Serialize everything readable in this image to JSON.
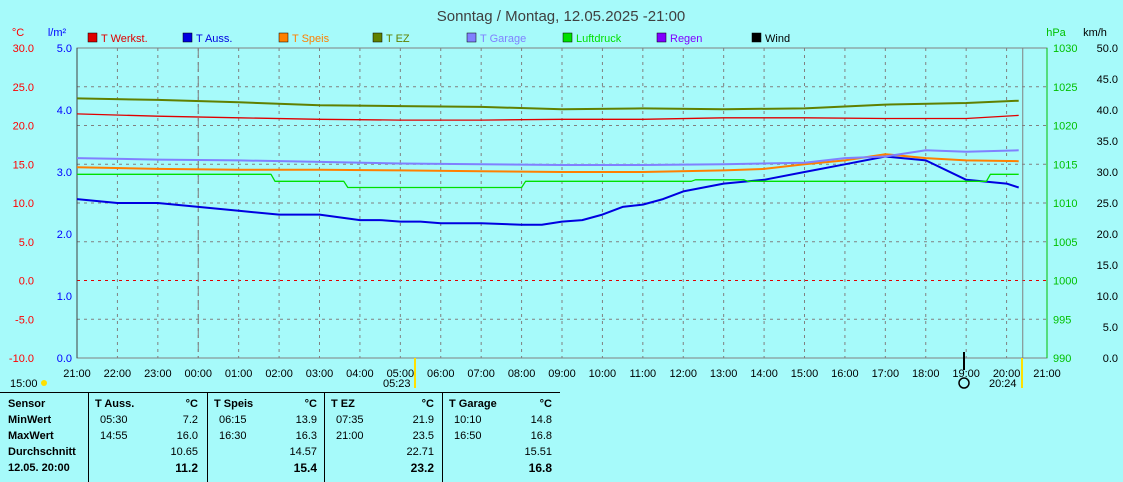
{
  "title": "Sonntag / Montag, 12.05.2025  -21:00",
  "chart_data": {
    "type": "line",
    "axes": {
      "left_temp": {
        "unit": "°C",
        "range": [
          -10,
          30
        ],
        "ticks": [
          "-10.0",
          "-5.0",
          "0.0",
          "5.0",
          "10.0",
          "15.0",
          "20.0",
          "25.0",
          "30.0"
        ],
        "color": "#ff0000"
      },
      "left_rain": {
        "unit": "l/m²",
        "range": [
          0,
          5
        ],
        "ticks": [
          "0.0",
          "1.0",
          "2.0",
          "3.0",
          "4.0",
          "5.0"
        ],
        "color": "#0000ff"
      },
      "right_pressure": {
        "unit": "hPa",
        "range": [
          990,
          1030
        ],
        "ticks": [
          "990",
          "995",
          "1000",
          "1005",
          "1010",
          "1015",
          "1020",
          "1025",
          "1030"
        ],
        "color": "#00c000"
      },
      "right_wind": {
        "unit": "km/h",
        "range": [
          0,
          50
        ],
        "ticks": [
          "0.0",
          "5.0",
          "10.0",
          "15.0",
          "20.0",
          "25.0",
          "30.0",
          "35.0",
          "40.0",
          "45.0",
          "50.0"
        ],
        "color": "#000000"
      }
    },
    "x_ticks": [
      "21:00",
      "22:00",
      "23:00",
      "00:00",
      "01:00",
      "02:00",
      "03:00",
      "04:00",
      "05:00",
      "06:00",
      "07:00",
      "08:00",
      "09:00",
      "10:00",
      "11:00",
      "12:00",
      "13:00",
      "14:00",
      "15:00",
      "16:00",
      "17:00",
      "18:00",
      "19:00",
      "20:00",
      "21:00"
    ],
    "x_unit": "hours since 21:00 Sunday",
    "legend": [
      {
        "name": "T Werkst.",
        "color": "#e00000"
      },
      {
        "name": "T Auss.",
        "color": "#0000e0"
      },
      {
        "name": "T Speis",
        "color": "#ff8000"
      },
      {
        "name": "T EZ",
        "color": "#608000"
      },
      {
        "name": "T Garage",
        "color": "#8080ff"
      },
      {
        "name": "Luftdruck",
        "color": "#00e000"
      },
      {
        "name": "Regen",
        "color": "#8000ff"
      },
      {
        "name": "Wind",
        "color": "#000000"
      }
    ],
    "sun": {
      "sunrise_label": "05:23",
      "sunset_label": "20:24",
      "prev_label": "15:00"
    },
    "series": [
      {
        "name": "T Werkst.",
        "axis": "left_temp",
        "x": [
          0,
          2,
          4,
          6,
          8,
          10,
          12,
          14,
          16,
          18,
          20,
          22,
          23.3
        ],
        "y": [
          21.5,
          21.2,
          21.0,
          20.8,
          20.7,
          20.7,
          20.8,
          20.8,
          21.0,
          21.0,
          20.9,
          20.9,
          21.3
        ]
      },
      {
        "name": "T Auss.",
        "axis": "left_temp",
        "x": [
          0,
          1,
          2,
          3,
          4,
          5,
          6,
          7,
          7.5,
          8,
          8.5,
          9,
          10,
          11,
          11.5,
          12,
          12.5,
          13,
          13.5,
          14,
          14.5,
          15,
          15.5,
          16,
          17,
          18,
          19,
          20,
          21,
          22,
          23,
          23.3
        ],
        "y": [
          10.5,
          10,
          10.0,
          9.5,
          9.0,
          8.5,
          8.5,
          7.8,
          7.8,
          7.6,
          7.6,
          7.4,
          7.4,
          7.2,
          7.2,
          7.6,
          7.8,
          8.5,
          9.5,
          9.8,
          10.5,
          11.5,
          12.0,
          12.5,
          13.0,
          14.0,
          15.0,
          16.0,
          15.5,
          13.0,
          12.5,
          12.0
        ]
      },
      {
        "name": "T Speis",
        "axis": "left_temp",
        "x": [
          0,
          2,
          4,
          6,
          8,
          10,
          12,
          14,
          16,
          17,
          18,
          19,
          20,
          21,
          22,
          23.3
        ],
        "y": [
          14.6,
          14.4,
          14.3,
          14.3,
          14.2,
          14.1,
          14.0,
          14.0,
          14.2,
          14.4,
          15.0,
          15.5,
          16.3,
          15.8,
          15.5,
          15.4
        ]
      },
      {
        "name": "T EZ",
        "axis": "left_temp",
        "x": [
          0,
          2,
          4,
          6,
          8,
          10,
          12,
          14,
          16,
          18,
          20,
          22,
          23.3
        ],
        "y": [
          23.5,
          23.3,
          23.0,
          22.6,
          22.5,
          22.4,
          22.1,
          22.2,
          22.1,
          22.2,
          22.7,
          22.9,
          23.2
        ]
      },
      {
        "name": "T Garage",
        "axis": "left_temp",
        "x": [
          0,
          2,
          4,
          6,
          8,
          10,
          12,
          14,
          16,
          18,
          19,
          20,
          21,
          22,
          23.3
        ],
        "y": [
          15.8,
          15.6,
          15.5,
          15.3,
          15.1,
          15.0,
          14.9,
          14.9,
          15.0,
          15.2,
          15.8,
          16.0,
          16.8,
          16.6,
          16.8
        ]
      },
      {
        "name": "Luftdruck",
        "axis": "right_pressure",
        "x": [
          0,
          4.8,
          4.9,
          6.6,
          6.7,
          11.0,
          11.1,
          15.2,
          15.3,
          16.5,
          16.6,
          22.5,
          22.6,
          23.3
        ],
        "y": [
          1013.7,
          1013.7,
          1012.8,
          1012.8,
          1012.0,
          1012.0,
          1012.8,
          1012.8,
          1013.0,
          1013.0,
          1012.8,
          1012.8,
          1013.7,
          1013.7
        ]
      }
    ]
  },
  "stats": {
    "header": {
      "sensor": "Sensor",
      "groups": [
        {
          "name": "T Auss.",
          "unit": "°C"
        },
        {
          "name": "T Speis",
          "unit": "°C"
        },
        {
          "name": "T EZ",
          "unit": "°C"
        },
        {
          "name": "T Garage",
          "unit": "°C"
        }
      ]
    },
    "rows": [
      {
        "label": "MinWert",
        "cells": [
          {
            "time": "05:30",
            "value": "7.2"
          },
          {
            "time": "06:15",
            "value": "13.9"
          },
          {
            "time": "07:35",
            "value": "21.9"
          },
          {
            "time": "10:10",
            "value": "14.8"
          }
        ]
      },
      {
        "label": "MaxWert",
        "cells": [
          {
            "time": "14:55",
            "value": "16.0"
          },
          {
            "time": "16:30",
            "value": "16.3"
          },
          {
            "time": "21:00",
            "value": "23.5"
          },
          {
            "time": "16:50",
            "value": "16.8"
          }
        ]
      },
      {
        "label": "Durchschnitt",
        "cells": [
          {
            "time": "",
            "value": "10.65"
          },
          {
            "time": "",
            "value": "14.57"
          },
          {
            "time": "",
            "value": "22.71"
          },
          {
            "time": "",
            "value": "15.51"
          }
        ]
      },
      {
        "label": "12.05. 20:00",
        "cells": [
          {
            "time": "",
            "value": "11.2"
          },
          {
            "time": "",
            "value": "15.4"
          },
          {
            "time": "",
            "value": "23.2"
          },
          {
            "time": "",
            "value": "16.8"
          }
        ]
      }
    ]
  }
}
